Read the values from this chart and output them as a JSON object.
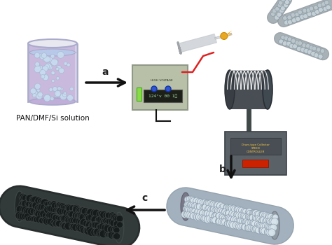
{
  "background_color": "#ffffff",
  "arrow_color": "#111111",
  "label_a": "a",
  "label_b": "b",
  "label_c": "c",
  "label_solution": "PAN/DMF/Si solution",
  "beaker_liquid_color": "#c0aed8",
  "beaker_bubble_color": "#c8dcf0",
  "device_color": "#b8c0a8",
  "collector_color": "#505860",
  "wire_red": "#dd2222",
  "wire_black": "#111111",
  "fiber_light_base": "#a8b4bc",
  "fiber_light_hole": "#e0e8f0",
  "fiber_dark_base": "#303838",
  "fiber_dark_hole": "#1a2020"
}
